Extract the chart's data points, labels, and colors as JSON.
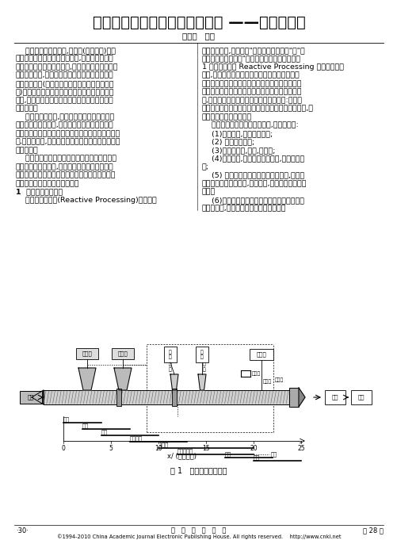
{
  "title": "利用成型加工机实现塑料功能化 ——反应性加工",
  "author": "黄汉生   编译",
  "bg_color": "#ffffff",
  "text_color": "#000000",
  "font_size_title": 14,
  "font_size_body": 6.8,
  "font_size_footer": 6.0,
  "left_lines": [
    "    随着塑料工业的发展,其产量(接容积计)已大",
    "体上与钓铁的总产量相同。同时,工程塑料和热塑",
    "性弹性体等产量少、品种多,附加价値高的产品技术",
    "也在迅速发展,特别是不同种类聚合物的复合技术",
    "即聚合物合金(现在是最令人关注的高附加价値塑",
    "料)技术近十几年来正以两位数增长率快速发展。",
    "此外,废塑料回收再生技术最近也是塑料工业界的",
    "重要课题。",
    "    在这样的背景下,近年来对塑料的制造方法进",
    "行了严格的重新评价,认为在聚合物传统的制造法",
    "中聚合、挥发分的脱除、分离、干燥、造粒等工序繁",
    "多,产品成本高,必须进行节能、简化工艺、减少公害",
    "等的改革。",
    "    反应性加工就是可以解决这样一些问题的新的",
    "聚合物制造与加工法,是近年来特别受到重视的技",
    "术。本文介绍反应性加工的基本原理并介绍其应用",
    "与发展的可行性及存在的问题。",
    "1  反应性加工的特征",
    "    所谓反应性加工(Reactive Processing)即反应性"
  ],
  "right_lines": [
    "聚合物的加工,其定义是\"利用反应的加工法\"和\"控",
    "制内部结构的加工法\"。其基本过程的示意图如图",
    "1 所示。日本将 Reactive Processing 译成反应挣出",
    "成型,可以理解为利用螺杆挣出机作为化学反应装",
    "置的聚合物加工技术。此技术多年前在欧洲已成为",
    "热门技术。此技术以已有的聚合物或其他物质作原",
    "料,在螺杆挣出机内进行一系列聚合反应如:共聚、",
    "接枝、加成、缩聚、酯交换、分解反应、改性反应等,制",
    "造高附加价値的聚合物。",
    "    反应性加工与传统聚合法相比,有如下优点:",
    "    (1)操作连续,可小批量生产;",
    "    (2) 设备费用较少;",
    "    (3)不使用溶剂,节能,公害小;",
    "    (4)机动灵活,适合生产不同产品,使用不同原",
    "料;",
    "    (5) 与聚合物共混等操作可自由组合,脱挥发",
    "分、造粒、成型加工等,过程简化,可形成一元化操作",
    "过程。",
    "    (6)在控制化学结构的同时可以控制细微组织",
    "等物理结构,可制造具有新物性的聚合物。"
  ],
  "diagram_caption": "图 1   反应性加工示意图",
  "footer_left": "·30·",
  "footer_center": "化   工   新   型   材   料",
  "footer_right": "第 28 卷",
  "footer_copyright": "©1994-2010 China Academic Journal Electronic Publishing House. All rights reserved.    http://www.cnki.net"
}
